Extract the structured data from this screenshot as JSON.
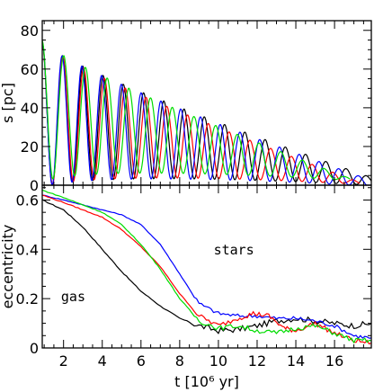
{
  "chart_data": [
    {
      "type": "line",
      "panel": "top",
      "ylabel": "s [pc]",
      "xlim": [
        0.9,
        17.9
      ],
      "ylim": [
        0,
        85
      ],
      "yticks": [
        {
          "v": 0,
          "label": "0"
        },
        {
          "v": 20,
          "label": "20"
        },
        {
          "v": 40,
          "label": "40"
        },
        {
          "v": 60,
          "label": "60"
        },
        {
          "v": 80,
          "label": "80"
        }
      ],
      "series": [
        {
          "color": "#000000",
          "t0": 0.9,
          "t1": 17.9,
          "c0": 36,
          "c1": 2,
          "a0": 38,
          "a1": 2,
          "w": 6.0,
          "phase": 0.0
        },
        {
          "color": "#ff0000",
          "t0": 0.9,
          "t1": 17.3,
          "c0": 36,
          "c1": 1,
          "a0": 38,
          "a1": 0.5,
          "w": 5.85,
          "phase": 0.03
        },
        {
          "color": "#0000ff",
          "t0": 0.9,
          "t1": 17.9,
          "c0": 36,
          "c1": 1,
          "a0": 38,
          "a1": 1.5,
          "w": 6.15,
          "phase": -0.03
        },
        {
          "color": "#00dd00",
          "t0": 0.9,
          "t1": 16.8,
          "c0": 38,
          "c1": 3,
          "a0": 37,
          "a1": 0.5,
          "w": 5.6,
          "phase": 0.05
        }
      ]
    },
    {
      "type": "line",
      "panel": "bottom",
      "xlabel": "t [10⁶ yr]",
      "ylabel": "eccentricity",
      "xlim": [
        0.9,
        17.9
      ],
      "ylim": [
        0,
        0.66
      ],
      "xticks": [
        {
          "v": 2,
          "label": "2"
        },
        {
          "v": 4,
          "label": "4"
        },
        {
          "v": 6,
          "label": "6"
        },
        {
          "v": 8,
          "label": "8"
        },
        {
          "v": 10,
          "label": "10"
        },
        {
          "v": 12,
          "label": "12"
        },
        {
          "v": 14,
          "label": "14"
        },
        {
          "v": 16,
          "label": "16"
        }
      ],
      "yticks": [
        {
          "v": 0,
          "label": "0"
        },
        {
          "v": 0.2,
          "label": "0.2"
        },
        {
          "v": 0.4,
          "label": "0.4"
        },
        {
          "v": 0.6,
          "label": "0.6"
        }
      ],
      "annotations": [
        {
          "text": "stars",
          "x": 10.8,
          "y": 0.38
        },
        {
          "text": "gas",
          "x": 2.5,
          "y": 0.19
        }
      ],
      "series": [
        {
          "color": "#000000",
          "points": [
            [
              0.9,
              0.6
            ],
            [
              2,
              0.56
            ],
            [
              3,
              0.49
            ],
            [
              4,
              0.4
            ],
            [
              5,
              0.31
            ],
            [
              6,
              0.23
            ],
            [
              7,
              0.17
            ],
            [
              8,
              0.12
            ],
            [
              9,
              0.09
            ],
            [
              10,
              0.07
            ],
            [
              11,
              0.075
            ],
            [
              12,
              0.09
            ],
            [
              13,
              0.11
            ],
            [
              14,
              0.12
            ],
            [
              15,
              0.11
            ],
            [
              16,
              0.1
            ],
            [
              17,
              0.09
            ],
            [
              17.9,
              0.1
            ]
          ],
          "noise": 0.012
        },
        {
          "color": "#0000ff",
          "points": [
            [
              0.9,
              0.62
            ],
            [
              2,
              0.6
            ],
            [
              3,
              0.58
            ],
            [
              4,
              0.56
            ],
            [
              5,
              0.54
            ],
            [
              6,
              0.5
            ],
            [
              7,
              0.42
            ],
            [
              8,
              0.3
            ],
            [
              9,
              0.18
            ],
            [
              10,
              0.14
            ],
            [
              11,
              0.13
            ],
            [
              12,
              0.13
            ],
            [
              13,
              0.12
            ],
            [
              14,
              0.12
            ],
            [
              15,
              0.11
            ],
            [
              16,
              0.09
            ],
            [
              17,
              0.05
            ],
            [
              17.9,
              0.04
            ]
          ],
          "noise": 0.008
        },
        {
          "color": "#ff0000",
          "points": [
            [
              0.9,
              0.62
            ],
            [
              2,
              0.59
            ],
            [
              3,
              0.56
            ],
            [
              4,
              0.53
            ],
            [
              5,
              0.48
            ],
            [
              6,
              0.41
            ],
            [
              7,
              0.33
            ],
            [
              8,
              0.22
            ],
            [
              9,
              0.13
            ],
            [
              10,
              0.09
            ],
            [
              11,
              0.12
            ],
            [
              11.8,
              0.14
            ],
            [
              12.6,
              0.13
            ],
            [
              13.4,
              0.08
            ],
            [
              14,
              0.07
            ],
            [
              15,
              0.1
            ],
            [
              16,
              0.06
            ],
            [
              17,
              0.03
            ],
            [
              17.9,
              0.02
            ]
          ],
          "noise": 0.01
        },
        {
          "color": "#00dd00",
          "points": [
            [
              0.9,
              0.64
            ],
            [
              2,
              0.61
            ],
            [
              3,
              0.58
            ],
            [
              4,
              0.55
            ],
            [
              5,
              0.5
            ],
            [
              6,
              0.42
            ],
            [
              7,
              0.32
            ],
            [
              8,
              0.2
            ],
            [
              9,
              0.11
            ],
            [
              10,
              0.08
            ],
            [
              11,
              0.09
            ],
            [
              12,
              0.07
            ],
            [
              13,
              0.06
            ],
            [
              14,
              0.08
            ],
            [
              15,
              0.09
            ],
            [
              16,
              0.06
            ],
            [
              17,
              0.03
            ],
            [
              17.9,
              0.03
            ]
          ],
          "noise": 0.01
        }
      ]
    }
  ]
}
